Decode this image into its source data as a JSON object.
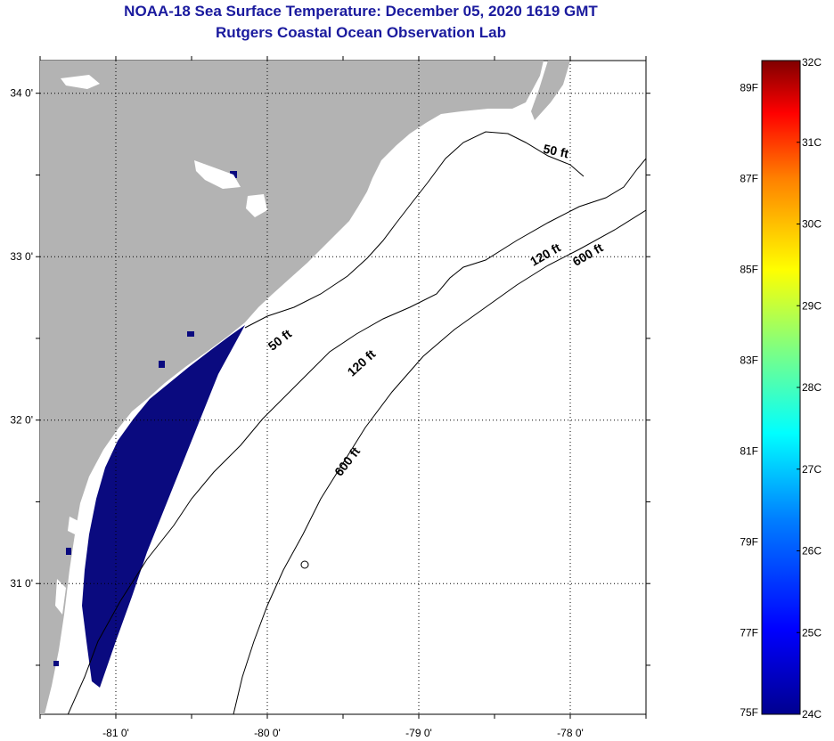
{
  "title": "NOAA-18 Sea Surface Temperature:  December 05, 2020 1619 GMT",
  "subtitle": "Rutgers Coastal Ocean Observation Lab",
  "colors": {
    "land": "#b3b3b3",
    "cold_pixels": "#0a0a7f",
    "cloud": "#ffffff",
    "title": "#1a1a9e"
  },
  "map": {
    "lat_labels": [
      {
        "value": 34,
        "text": "34 0'"
      },
      {
        "value": 33,
        "text": "33 0'"
      },
      {
        "value": 32,
        "text": "32 0'"
      },
      {
        "value": 31,
        "text": "31 0'"
      }
    ],
    "lon_labels": [
      {
        "value": -81,
        "text": "-81 0'"
      },
      {
        "value": -80,
        "text": "-80 0'"
      },
      {
        "value": -79,
        "text": "-79 0'"
      },
      {
        "value": -78,
        "text": "-78 0'"
      }
    ],
    "lon_range": [
      -81.5,
      -77.5
    ],
    "lat_range": [
      30.2,
      34.2
    ],
    "isobaths": [
      {
        "label": "50 ft",
        "depth_ft": 50,
        "lon": -79.9,
        "lat": 32.47,
        "angle": -38
      },
      {
        "label": "50 ft",
        "depth_ft": 50,
        "lon": -78.1,
        "lat": 33.62,
        "angle": 12
      },
      {
        "label": "120 ft",
        "depth_ft": 120,
        "lon": -79.36,
        "lat": 32.33,
        "angle": -42
      },
      {
        "label": "120 ft",
        "depth_ft": 120,
        "lon": -78.15,
        "lat": 32.99,
        "angle": -30
      },
      {
        "label": "600 ft",
        "depth_ft": 600,
        "lon": -79.45,
        "lat": 31.73,
        "angle": -52
      },
      {
        "label": "600 ft",
        "depth_ft": 600,
        "lon": -77.87,
        "lat": 32.99,
        "angle": -30
      }
    ]
  },
  "colorbar": {
    "celsius_labels": [
      "32C",
      "31C",
      "30C",
      "29C",
      "28C",
      "27C",
      "26C",
      "25C",
      "24C"
    ],
    "celsius_values": [
      32,
      31,
      30,
      29,
      28,
      27,
      26,
      25,
      24
    ],
    "fahrenheit_labels": [
      "89F",
      "87F",
      "85F",
      "83F",
      "81F",
      "79F",
      "77F",
      "75F"
    ],
    "fahrenheit_values": [
      89,
      87,
      85,
      83,
      81,
      79,
      77,
      75
    ],
    "range_c": [
      24,
      32
    ],
    "colormap": [
      "#00008f",
      "#0000ff",
      "#0080ff",
      "#00ffff",
      "#80ff80",
      "#ffff00",
      "#ff8000",
      "#ff0000",
      "#800000"
    ]
  }
}
